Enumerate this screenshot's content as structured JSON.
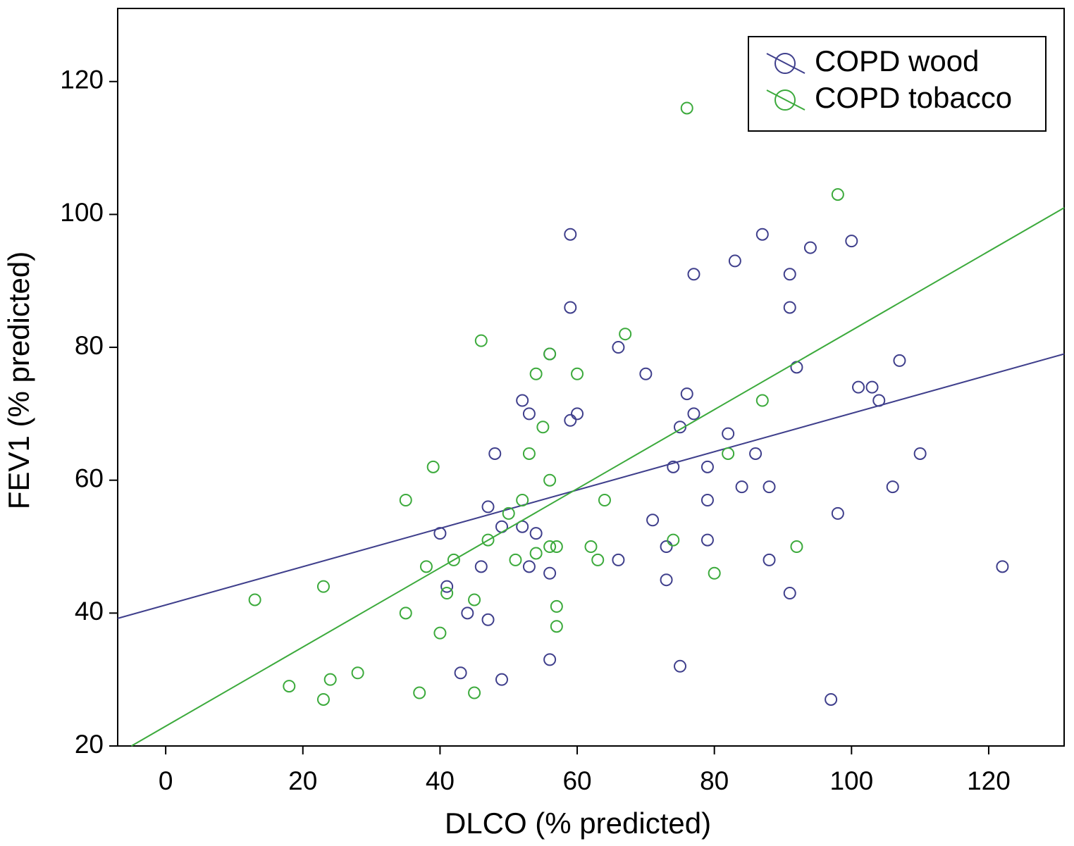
{
  "chart_data": {
    "type": "scatter",
    "x_label": "DLCO (% predicted)",
    "y_label": "FEV1 (% predicted)",
    "xlim": [
      -7,
      131
    ],
    "ylim": [
      20,
      131
    ],
    "xticks": [
      0,
      20,
      40,
      60,
      80,
      100,
      120
    ],
    "yticks": [
      20,
      40,
      60,
      80,
      100,
      120
    ],
    "grid": false,
    "legend": "upper right",
    "series": [
      {
        "name": "COPD wood",
        "color": "#3f3f8c",
        "x": [
          59,
          59,
          56,
          52,
          53,
          60,
          59,
          48,
          47,
          49,
          52,
          54,
          53,
          46,
          56,
          41,
          44,
          47,
          43,
          49,
          56,
          66,
          70,
          76,
          77,
          75,
          74,
          71,
          73,
          73,
          66,
          75,
          79,
          79,
          79,
          82,
          86,
          84,
          88,
          88,
          91,
          83,
          87,
          77,
          94,
          91,
          91,
          92,
          100,
          101,
          103,
          104,
          107,
          110,
          106,
          98,
          97,
          122,
          40
        ],
        "values": [
          97,
          86,
          79,
          72,
          70,
          70,
          69,
          64,
          56,
          53,
          53,
          52,
          47,
          47,
          46,
          44,
          40,
          39,
          31,
          30,
          33,
          80,
          76,
          73,
          70,
          68,
          62,
          54,
          50,
          45,
          48,
          32,
          62,
          57,
          51,
          67,
          64,
          59,
          59,
          48,
          43,
          93,
          97,
          91,
          95,
          91,
          86,
          77,
          96,
          74,
          74,
          72,
          78,
          64,
          59,
          55,
          27,
          47,
          52
        ],
        "fit": {
          "x": [
            -7,
            131
          ],
          "y": [
            39.2,
            79
          ]
        }
      },
      {
        "name": "COPD tobacco",
        "color": "#3caa3c",
        "x": [
          76,
          98,
          46,
          67,
          56,
          54,
          60,
          55,
          53,
          39,
          56,
          35,
          52,
          64,
          87,
          82,
          50,
          47,
          74,
          56,
          57,
          62,
          92,
          54,
          51,
          42,
          63,
          38,
          80,
          23,
          13,
          41,
          45,
          57,
          35,
          57,
          40,
          28,
          24,
          18,
          37,
          45,
          23
        ],
        "values": [
          116,
          103,
          81,
          82,
          79,
          76,
          76,
          68,
          64,
          62,
          60,
          57,
          57,
          57,
          72,
          64,
          55,
          51,
          51,
          50,
          50,
          50,
          50,
          49,
          48,
          48,
          48,
          47,
          46,
          44,
          42,
          43,
          42,
          41,
          40,
          38,
          37,
          31,
          30,
          29,
          28,
          28,
          27
        ],
        "fit": {
          "x": [
            -5,
            131
          ],
          "y": [
            20,
            101
          ]
        }
      }
    ]
  }
}
